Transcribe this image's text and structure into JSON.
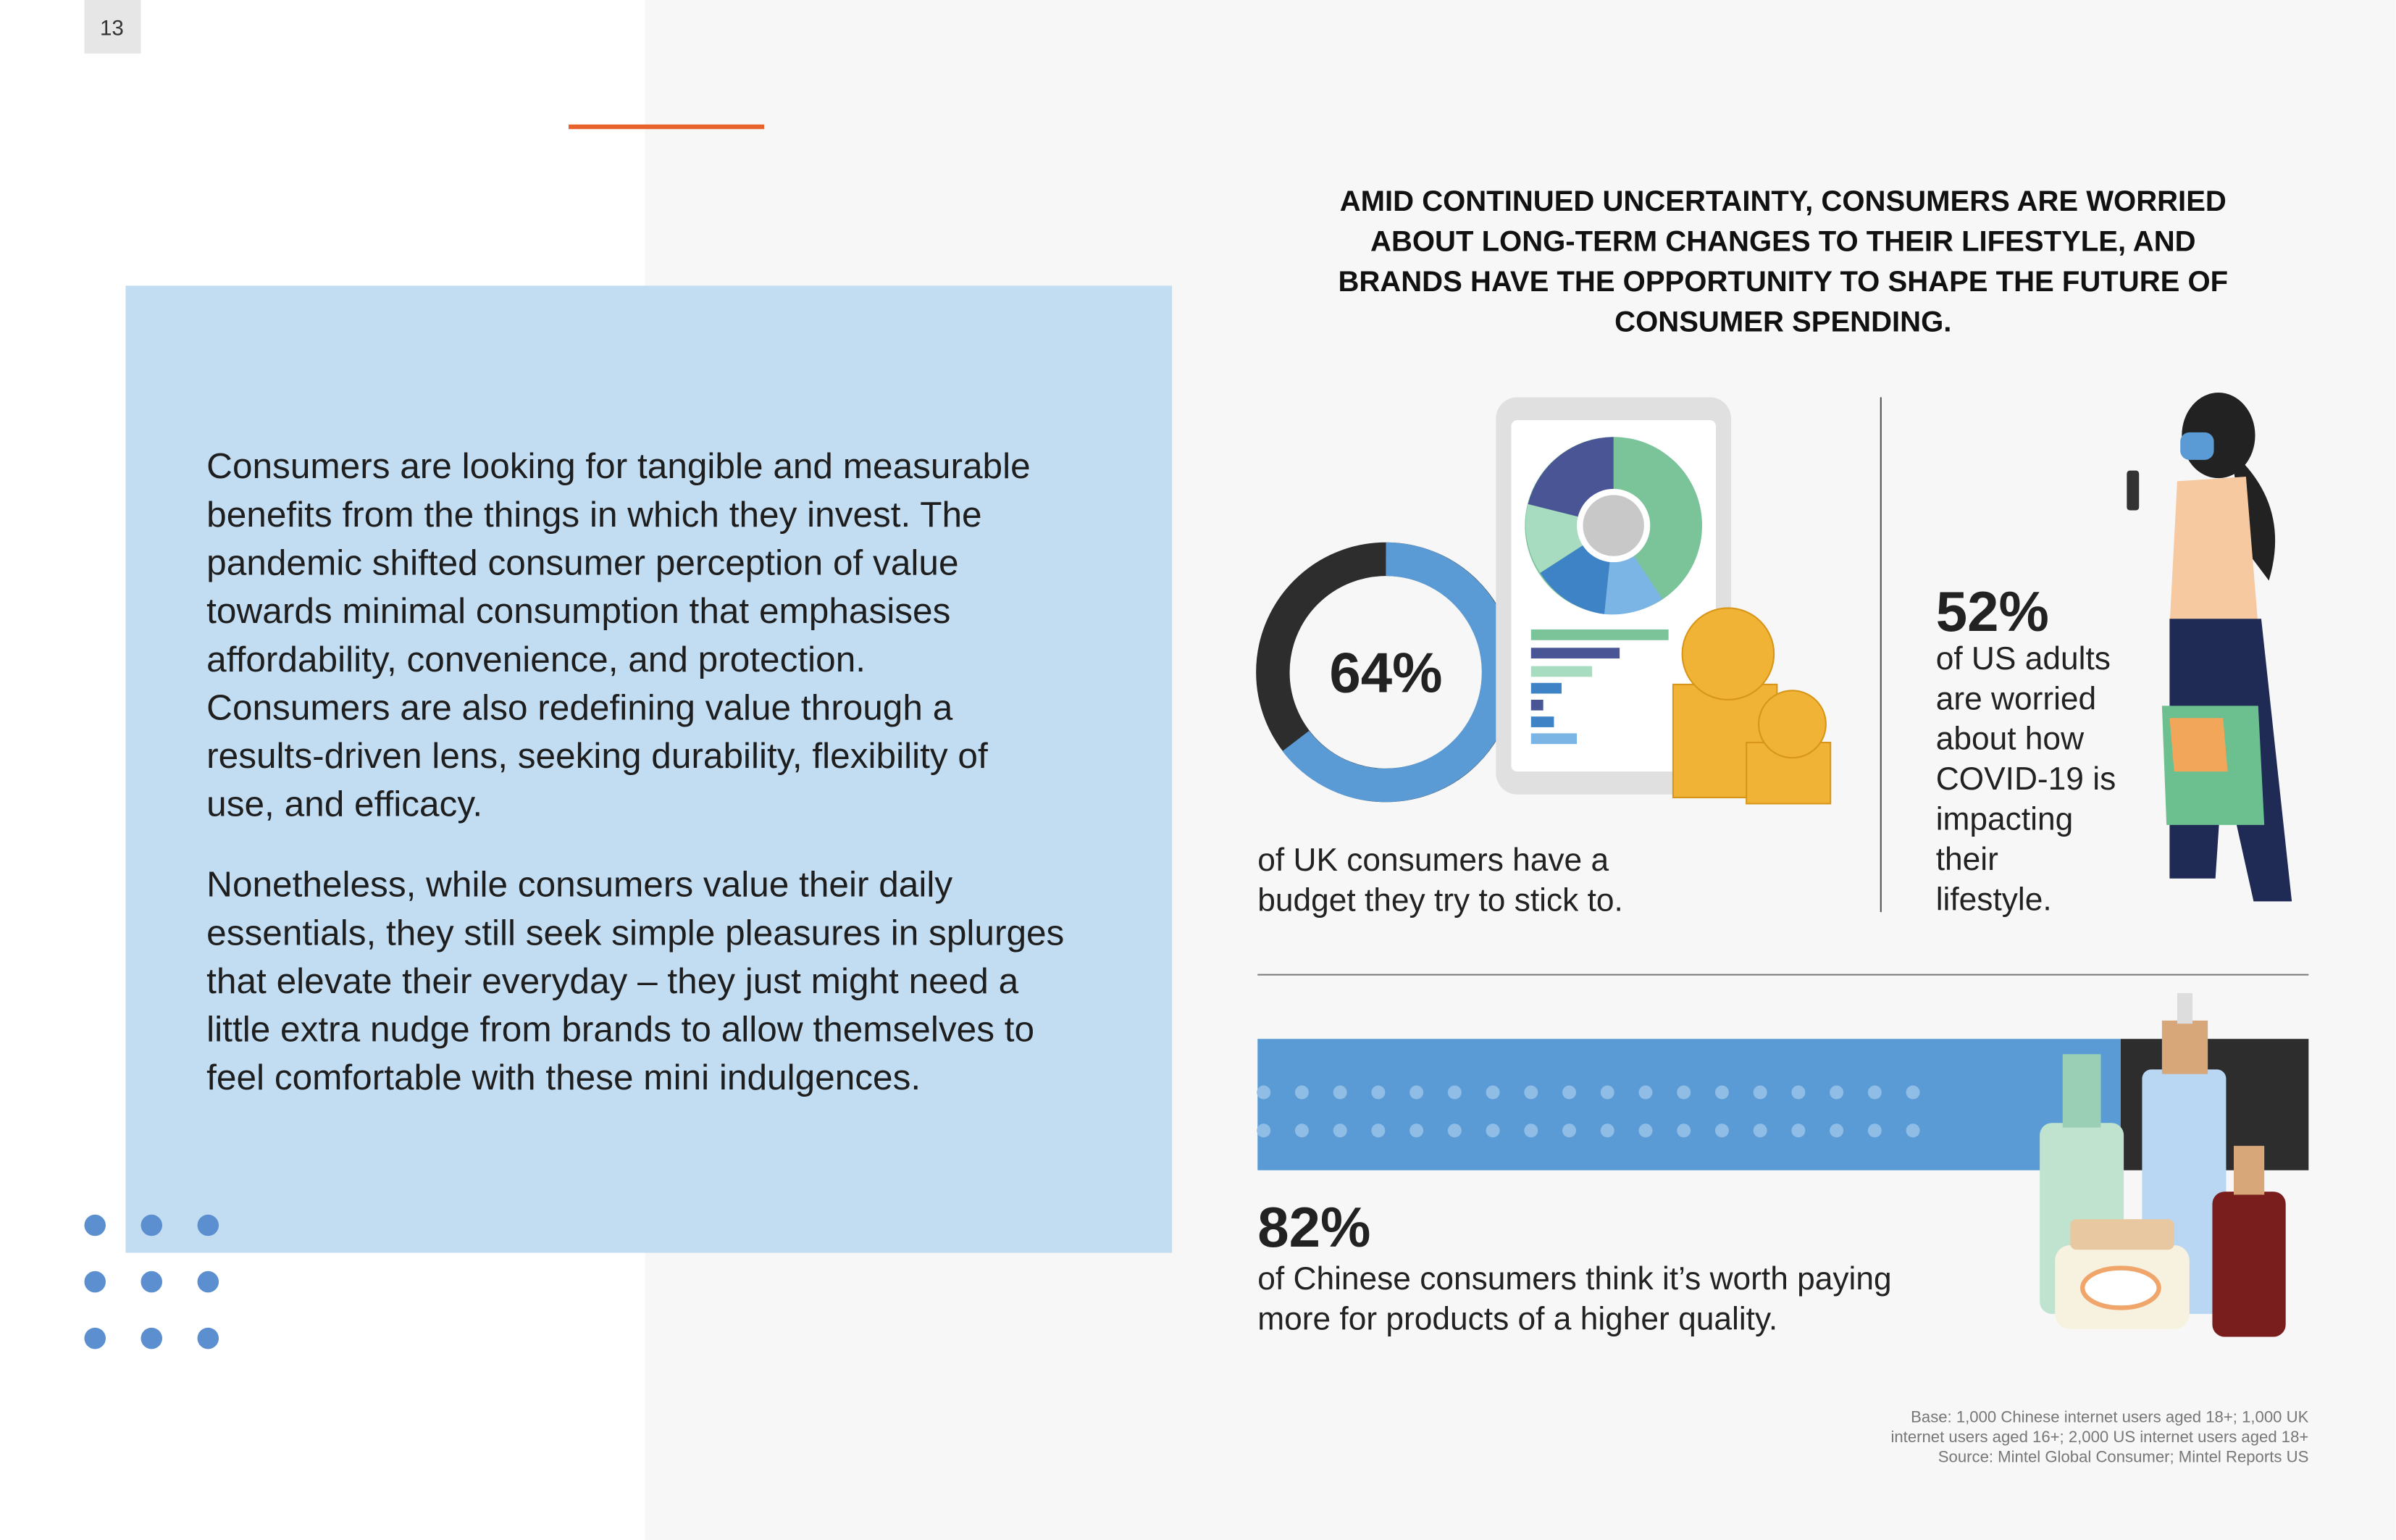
{
  "page_number": "13",
  "headline": [
    "AMID CONTINUED UNCERTAINTY, CONSUMERS ARE WORRIED",
    "ABOUT LONG-TERM CHANGES TO THEIR LIFESTYLE, AND",
    "BRANDS HAVE THE OPPORTUNITY TO SHAPE THE FUTURE OF",
    "CONSUMER SPENDING."
  ],
  "paragraphs": [
    [
      "Consumers are looking for tangible and measurable",
      "benefits from the things in which they invest. The",
      "pandemic shifted consumer perception of value",
      "towards minimal consumption that emphasises",
      "affordability, convenience, and protection.",
      "Consumers are also redefining value through a",
      "results-driven lens, seeking durability, flexibility of",
      "use, and efficacy."
    ],
    [
      "Nonetheless, while consumers value their daily",
      "essentials, they still seek simple pleasures in splurges",
      "that elevate their everyday – they just might need a",
      "little extra nudge from brands to allow themselves to",
      "feel comfortable with these mini indulgences."
    ]
  ],
  "stats": [
    {
      "value": "64%",
      "text": [
        "of UK consumers have a",
        "budget they try to stick to."
      ]
    },
    {
      "value": "52%",
      "text": [
        "of US adults",
        "are worried",
        "about how",
        "COVID-19 is",
        "impacting",
        "their",
        "lifestyle."
      ]
    },
    {
      "value": "82%",
      "text": [
        "of Chinese consumers think it’s worth paying",
        "more for products of a higher quality."
      ]
    }
  ],
  "footnote": [
    "Base: 1,000 Chinese internet users aged 18+; 1,000 UK",
    "internet users aged 16+; 2,000 US internet users aged 18+",
    "Source: Mintel Global Consumer; Mintel Reports US"
  ]
}
